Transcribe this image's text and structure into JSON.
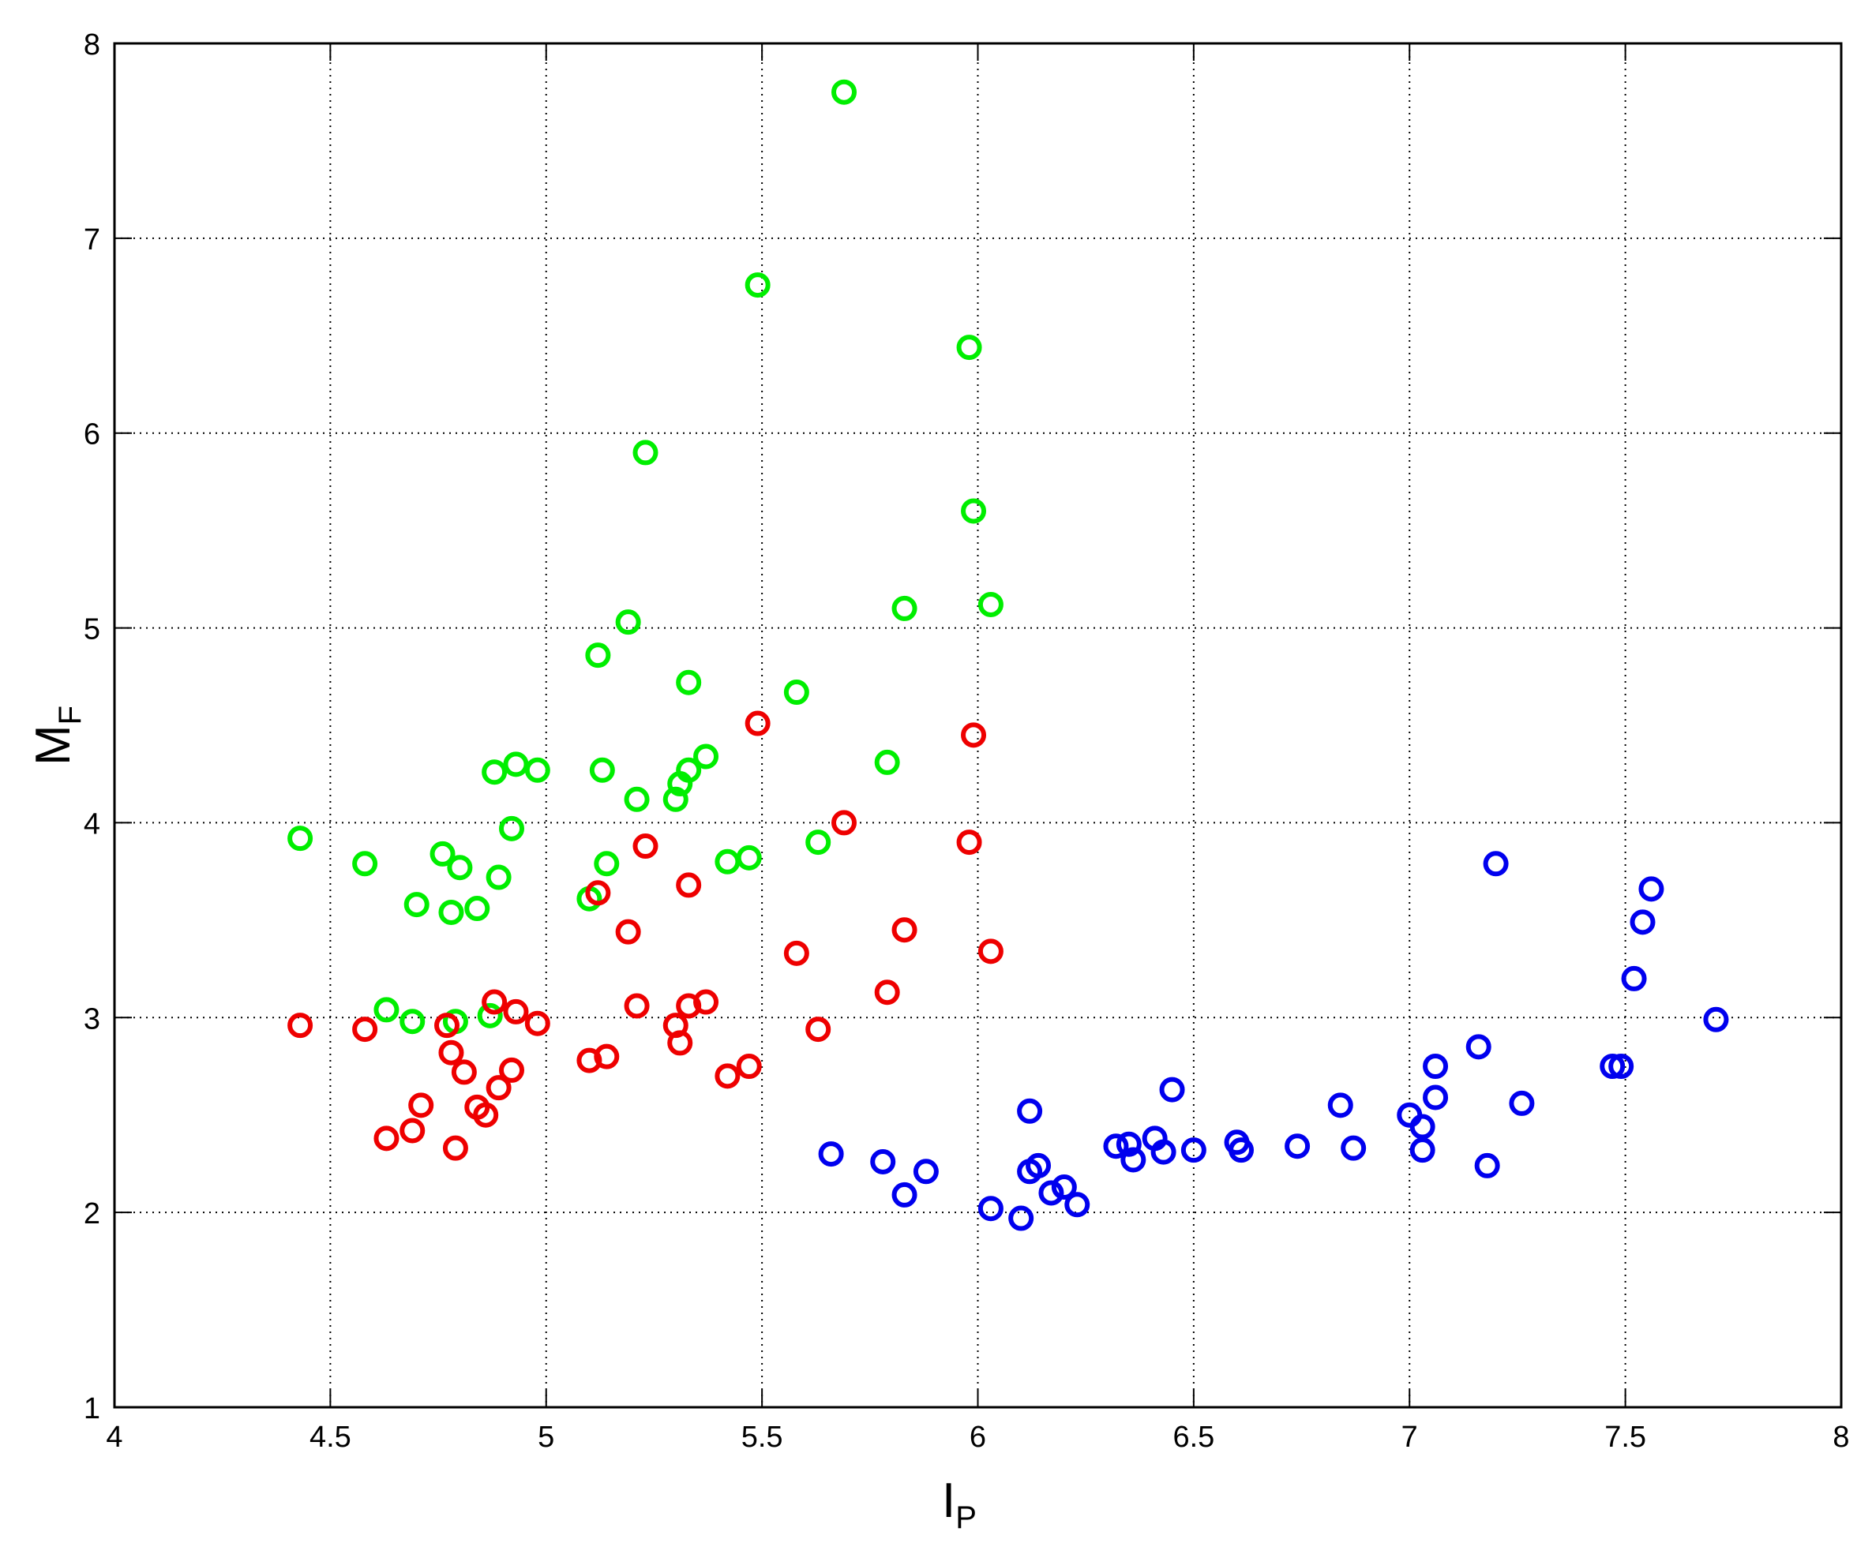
{
  "chart_data": {
    "type": "scatter",
    "title": "",
    "xlabel": "I",
    "xlabel_sub": "P",
    "ylabel": "M",
    "ylabel_sub": "F",
    "xlim": [
      4,
      8
    ],
    "ylim": [
      1,
      8
    ],
    "xticks": [
      4,
      4.5,
      5,
      5.5,
      6,
      6.5,
      7,
      7.5,
      8
    ],
    "yticks": [
      1,
      2,
      3,
      4,
      5,
      6,
      7,
      8
    ],
    "xtick_labels": [
      "4",
      "4.5",
      "5",
      "5.5",
      "6",
      "6.5",
      "7",
      "7.5",
      "8"
    ],
    "ytick_labels": [
      "1",
      "2",
      "3",
      "4",
      "5",
      "6",
      "7",
      "8"
    ],
    "grid": true,
    "marker": "circle-open",
    "series": [
      {
        "color": "#00ee00",
        "points": [
          [
            4.43,
            3.92
          ],
          [
            4.58,
            3.79
          ],
          [
            4.63,
            3.04
          ],
          [
            4.69,
            2.98
          ],
          [
            4.7,
            3.58
          ],
          [
            4.76,
            3.84
          ],
          [
            4.78,
            3.54
          ],
          [
            4.8,
            3.77
          ],
          [
            4.79,
            2.98
          ],
          [
            4.84,
            3.56
          ],
          [
            4.87,
            3.01
          ],
          [
            4.88,
            4.26
          ],
          [
            4.89,
            3.72
          ],
          [
            4.92,
            3.97
          ],
          [
            4.93,
            4.3
          ],
          [
            4.98,
            4.27
          ],
          [
            5.1,
            3.61
          ],
          [
            5.12,
            4.86
          ],
          [
            5.13,
            4.27
          ],
          [
            5.14,
            3.79
          ],
          [
            5.19,
            5.03
          ],
          [
            5.21,
            4.12
          ],
          [
            5.23,
            5.9
          ],
          [
            5.3,
            4.12
          ],
          [
            5.31,
            4.2
          ],
          [
            5.33,
            4.72
          ],
          [
            5.33,
            4.27
          ],
          [
            5.37,
            4.34
          ],
          [
            5.42,
            3.8
          ],
          [
            5.47,
            3.82
          ],
          [
            5.49,
            6.76
          ],
          [
            5.58,
            4.67
          ],
          [
            5.63,
            3.9
          ],
          [
            5.69,
            7.75
          ],
          [
            5.79,
            4.31
          ],
          [
            5.83,
            5.1
          ],
          [
            5.98,
            6.44
          ],
          [
            5.99,
            5.6
          ],
          [
            6.03,
            5.12
          ]
        ]
      },
      {
        "color": "#ee0000",
        "points": [
          [
            4.43,
            2.96
          ],
          [
            4.58,
            2.94
          ],
          [
            4.63,
            2.38
          ],
          [
            4.69,
            2.42
          ],
          [
            4.71,
            2.55
          ],
          [
            4.77,
            2.96
          ],
          [
            4.78,
            2.82
          ],
          [
            4.79,
            2.33
          ],
          [
            4.81,
            2.72
          ],
          [
            4.84,
            2.54
          ],
          [
            4.86,
            2.5
          ],
          [
            4.88,
            3.08
          ],
          [
            4.89,
            2.64
          ],
          [
            4.92,
            2.73
          ],
          [
            4.93,
            3.03
          ],
          [
            4.98,
            2.97
          ],
          [
            5.1,
            2.78
          ],
          [
            5.12,
            3.64
          ],
          [
            5.14,
            2.8
          ],
          [
            5.19,
            3.44
          ],
          [
            5.21,
            3.06
          ],
          [
            5.23,
            3.88
          ],
          [
            5.3,
            2.96
          ],
          [
            5.31,
            2.87
          ],
          [
            5.33,
            3.68
          ],
          [
            5.33,
            3.06
          ],
          [
            5.37,
            3.08
          ],
          [
            5.42,
            2.7
          ],
          [
            5.47,
            2.75
          ],
          [
            5.49,
            4.51
          ],
          [
            5.58,
            3.33
          ],
          [
            5.63,
            2.94
          ],
          [
            5.69,
            4.0
          ],
          [
            5.79,
            3.13
          ],
          [
            5.83,
            3.45
          ],
          [
            5.98,
            3.9
          ],
          [
            5.99,
            4.45
          ],
          [
            6.03,
            3.34
          ]
        ]
      },
      {
        "color": "#0000ee",
        "points": [
          [
            5.66,
            2.3
          ],
          [
            5.78,
            2.26
          ],
          [
            5.83,
            2.09
          ],
          [
            5.88,
            2.21
          ],
          [
            6.03,
            2.02
          ],
          [
            6.1,
            1.97
          ],
          [
            6.12,
            2.52
          ],
          [
            6.12,
            2.21
          ],
          [
            6.14,
            2.24
          ],
          [
            6.17,
            2.1
          ],
          [
            6.2,
            2.13
          ],
          [
            6.23,
            2.04
          ],
          [
            6.32,
            2.34
          ],
          [
            6.35,
            2.35
          ],
          [
            6.36,
            2.27
          ],
          [
            6.41,
            2.38
          ],
          [
            6.43,
            2.31
          ],
          [
            6.45,
            2.63
          ],
          [
            6.5,
            2.32
          ],
          [
            6.6,
            2.36
          ],
          [
            6.61,
            2.32
          ],
          [
            6.74,
            2.34
          ],
          [
            6.84,
            2.55
          ],
          [
            6.87,
            2.33
          ],
          [
            7.0,
            2.5
          ],
          [
            7.03,
            2.44
          ],
          [
            7.03,
            2.32
          ],
          [
            7.06,
            2.59
          ],
          [
            7.06,
            2.75
          ],
          [
            7.16,
            2.85
          ],
          [
            7.18,
            2.24
          ],
          [
            7.2,
            3.79
          ],
          [
            7.26,
            2.56
          ],
          [
            7.47,
            2.75
          ],
          [
            7.49,
            2.75
          ],
          [
            7.52,
            3.2
          ],
          [
            7.54,
            3.49
          ],
          [
            7.56,
            3.66
          ],
          [
            7.71,
            2.99
          ]
        ]
      }
    ]
  }
}
